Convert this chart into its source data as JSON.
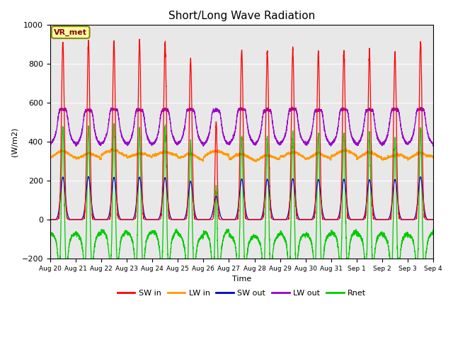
{
  "title": "Short/Long Wave Radiation",
  "xlabel": "Time",
  "ylabel": "(W/m2)",
  "ylim": [
    -200,
    1000
  ],
  "background_color": "#e8e8e8",
  "legend_label": "VR_met",
  "series": {
    "SW_in": {
      "color": "#ff0000",
      "label": "SW in"
    },
    "LW_in": {
      "color": "#ff9900",
      "label": "LW in"
    },
    "SW_out": {
      "color": "#0000cc",
      "label": "SW out"
    },
    "LW_out": {
      "color": "#9900cc",
      "label": "LW out"
    },
    "Rnet": {
      "color": "#00cc00",
      "label": "Rnet"
    }
  },
  "xtick_labels": [
    "Aug 20",
    "Aug 21",
    "Aug 22",
    "Aug 23",
    "Aug 24",
    "Aug 25",
    "Aug 26",
    "Aug 27",
    "Aug 28",
    "Aug 29",
    "Aug 30",
    "Aug 31",
    "Sep 1",
    "Sep 2",
    "Sep 3",
    "Sep 4"
  ],
  "n_days": 15,
  "pts_per_day": 288
}
